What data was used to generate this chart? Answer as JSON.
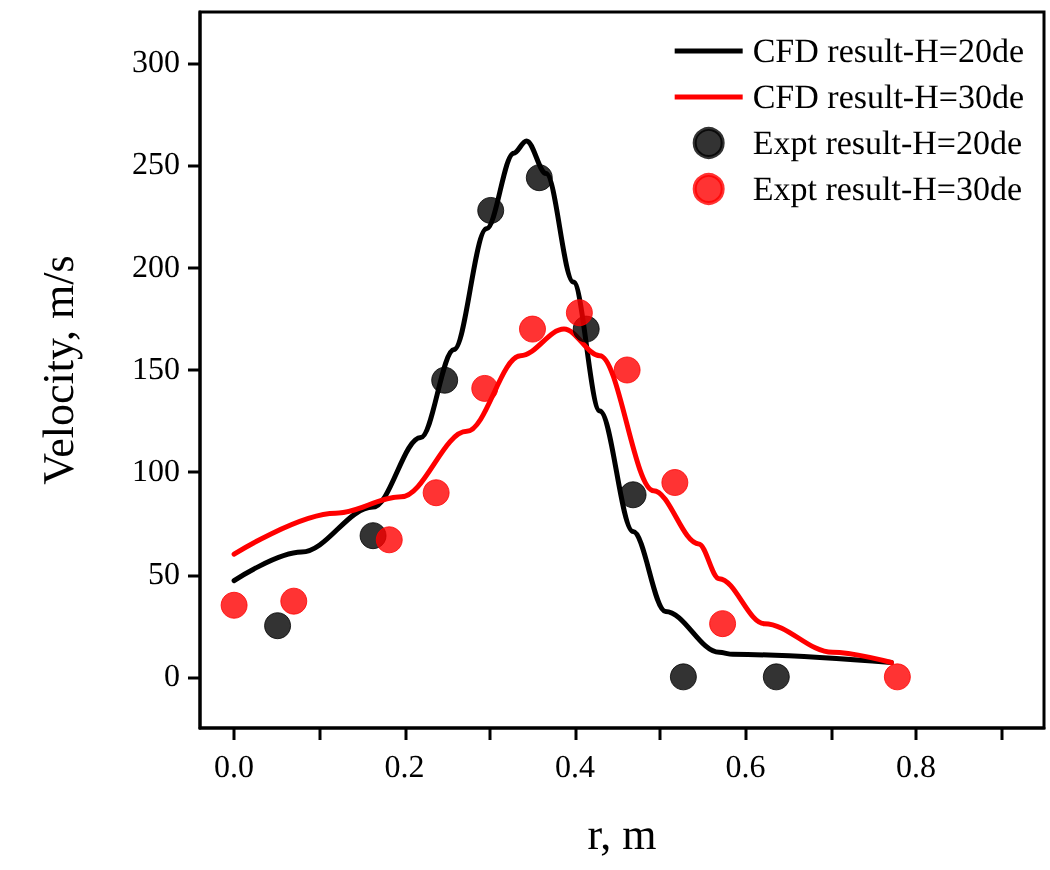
{
  "chart_data": {
    "type": "line",
    "xlabel": "r, m",
    "ylabel": "Velocity, m/s",
    "xlim": [
      -0.04,
      0.95
    ],
    "ylim": [
      -25,
      325
    ],
    "xticks": [
      {
        "value": 0,
        "label": "0.0"
      },
      {
        "value": 0.1,
        "label": null
      },
      {
        "value": 0.2,
        "label": "0.2"
      },
      {
        "value": 0.3,
        "label": null
      },
      {
        "value": 0.4,
        "label": "0.4"
      },
      {
        "value": 0.5,
        "label": null
      },
      {
        "value": 0.6,
        "label": "0.6"
      },
      {
        "value": 0.7,
        "label": null
      },
      {
        "value": 0.8,
        "label": "0.8"
      },
      {
        "value": 0.9,
        "label": null
      }
    ],
    "yticks": [
      0,
      50,
      100,
      150,
      200,
      250,
      300
    ],
    "grid": false,
    "legend": "top right",
    "series": [
      {
        "name": "CFD result-H=20de",
        "color": "#000000",
        "marker": "none",
        "line_style": "solid",
        "x": [
          0,
          0.079,
          0.163,
          0.219,
          0.258,
          0.296,
          0.328,
          0.343,
          0.366,
          0.398,
          0.429,
          0.468,
          0.506,
          0.569,
          0.585,
          0.771
        ],
        "values": [
          47,
          61,
          83,
          117,
          160,
          219,
          256,
          262,
          246,
          193,
          130,
          71,
          32,
          12,
          11,
          7
        ]
      },
      {
        "name": "CFD result-H=30de",
        "color": "#ff0000",
        "marker": "none",
        "line_style": "solid",
        "x": [
          0,
          0.119,
          0.196,
          0.273,
          0.336,
          0.387,
          0.429,
          0.492,
          0.545,
          0.569,
          0.622,
          0.702,
          0.771
        ],
        "values": [
          60,
          80,
          88,
          120,
          157,
          170,
          157,
          91,
          65,
          48,
          26,
          12,
          7
        ]
      },
      {
        "name": "Expt result-H=20de",
        "type": "scatter",
        "color": "#000000",
        "marker": "circle",
        "x": [
          0.051,
          0.163,
          0.247,
          0.301,
          0.358,
          0.413,
          0.468,
          0.527,
          0.636
        ],
        "values": [
          25,
          69,
          145,
          228,
          244,
          170,
          89,
          0,
          0
        ]
      },
      {
        "name": "Expt result-H=30de",
        "type": "scatter",
        "color": "#ff0000",
        "marker": "circle",
        "x": [
          0.0,
          0.07,
          0.182,
          0.237,
          0.294,
          0.35,
          0.405,
          0.461,
          0.517,
          0.573,
          0.778
        ],
        "values": [
          35,
          37,
          67,
          90,
          141,
          170,
          178,
          150,
          95,
          26,
          0
        ]
      }
    ]
  }
}
